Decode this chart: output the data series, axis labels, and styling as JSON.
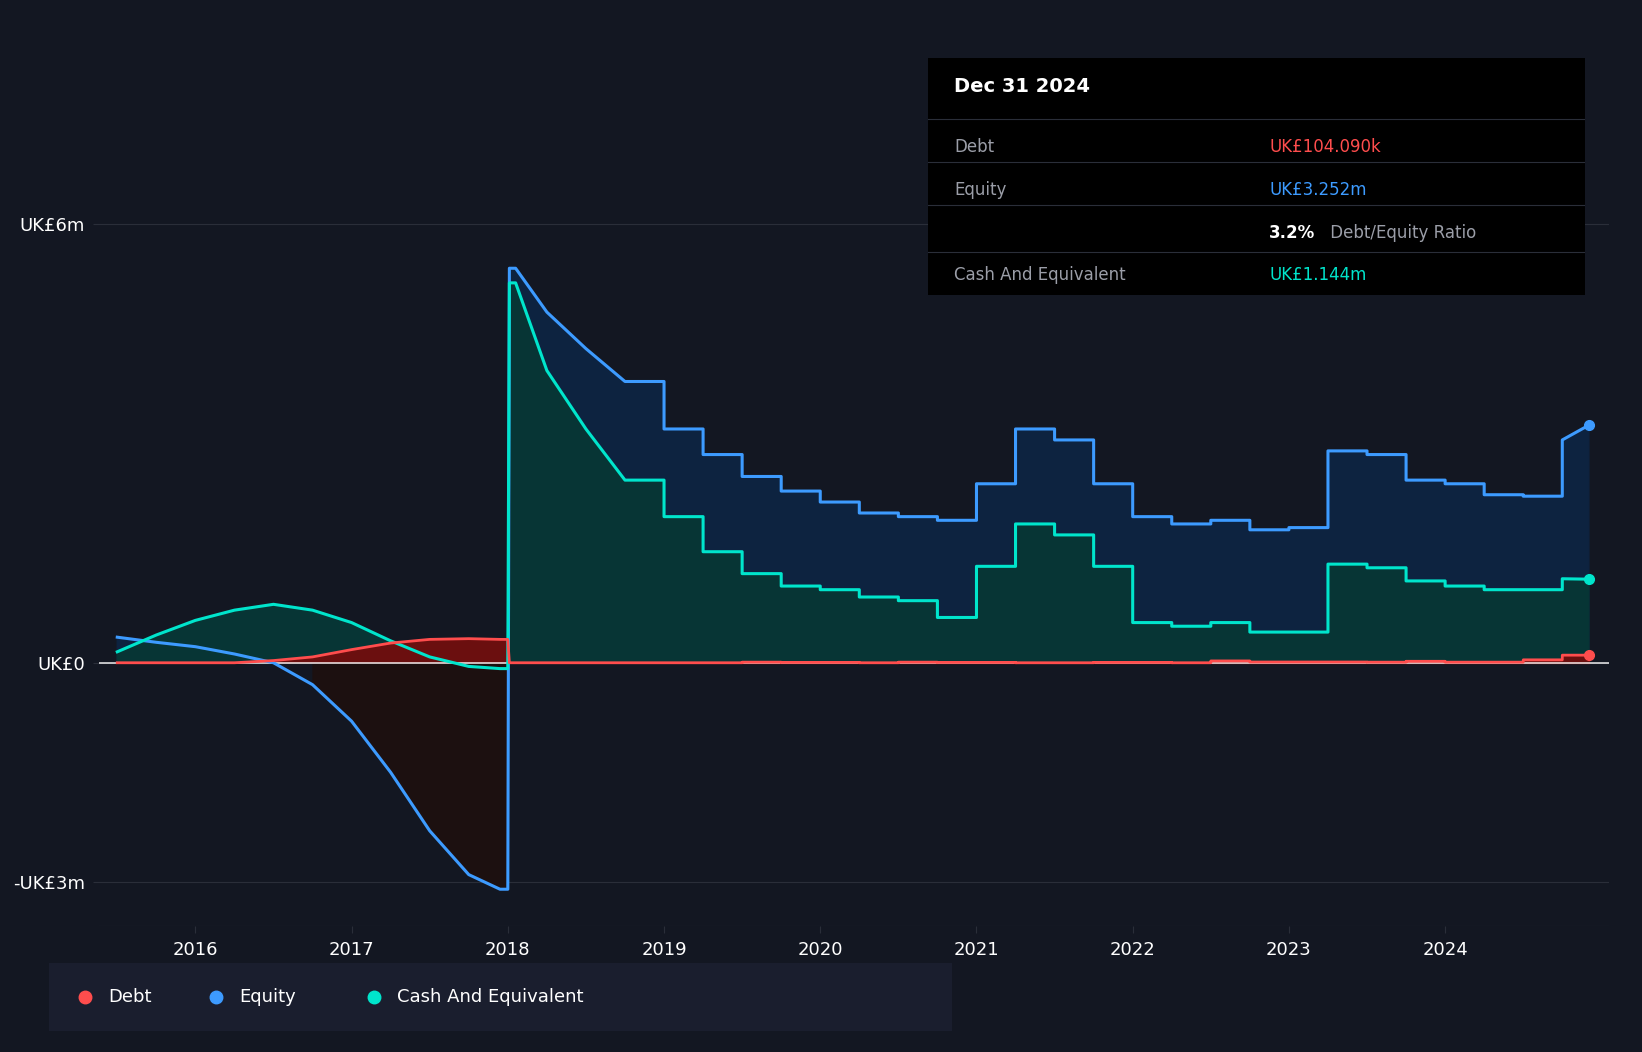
{
  "bg_color": "#131722",
  "plot_bg_color": "#131722",
  "debt_color": "#ff4d4d",
  "equity_color": "#3d9bff",
  "cash_color": "#00e5cc",
  "equity_fill_positive": "#0d2340",
  "equity_fill_negative": "#251010",
  "cash_fill_positive": "#073333",
  "cash_fill_negative": "#251010",
  "debt_fill_color": "#6b1010",
  "zero_line_color": "#ffffff",
  "grid_color": "#2a2e39",
  "text_color": "#ffffff",
  "label_color": "#9b9ea8",
  "tooltip_bg": "#000000",
  "tooltip": {
    "date": "Dec 31 2024",
    "debt_label": "Debt",
    "debt_value": "UK£104.090k",
    "equity_label": "Equity",
    "equity_value": "UK£3.252m",
    "ratio_text": "3.2% Debt/Equity Ratio",
    "cash_label": "Cash And Equivalent",
    "cash_value": "UK£1.144m"
  },
  "equity_data": {
    "x": [
      2015.5,
      2015.75,
      2016.0,
      2016.25,
      2016.5,
      2016.75,
      2017.0,
      2017.25,
      2017.5,
      2017.75,
      2017.95,
      2018.0,
      2018.01,
      2018.05,
      2018.25,
      2018.5,
      2018.75,
      2019.0,
      2019.0,
      2019.25,
      2019.25,
      2019.5,
      2019.5,
      2019.75,
      2019.75,
      2020.0,
      2020.0,
      2020.25,
      2020.25,
      2020.5,
      2020.5,
      2020.75,
      2020.75,
      2021.0,
      2021.0,
      2021.25,
      2021.25,
      2021.5,
      2021.5,
      2021.75,
      2021.75,
      2022.0,
      2022.0,
      2022.25,
      2022.25,
      2022.5,
      2022.5,
      2022.75,
      2022.75,
      2023.0,
      2023.0,
      2023.25,
      2023.25,
      2023.5,
      2023.5,
      2023.75,
      2023.75,
      2024.0,
      2024.0,
      2024.25,
      2024.25,
      2024.5,
      2024.5,
      2024.75,
      2024.75,
      2024.92
    ],
    "y": [
      0.35,
      0.28,
      0.22,
      0.12,
      0.0,
      -0.3,
      -0.8,
      -1.5,
      -2.3,
      -2.9,
      -3.1,
      -3.1,
      5.4,
      5.4,
      4.8,
      4.3,
      3.85,
      3.85,
      3.2,
      3.2,
      2.85,
      2.85,
      2.55,
      2.55,
      2.35,
      2.35,
      2.2,
      2.2,
      2.05,
      2.05,
      2.0,
      2.0,
      1.95,
      1.95,
      2.45,
      2.45,
      3.2,
      3.2,
      3.05,
      3.05,
      2.45,
      2.45,
      2.0,
      2.0,
      1.9,
      1.9,
      1.95,
      1.95,
      1.82,
      1.82,
      1.85,
      1.85,
      2.9,
      2.9,
      2.85,
      2.85,
      2.5,
      2.5,
      2.45,
      2.45,
      2.3,
      2.3,
      2.28,
      2.28,
      3.05,
      3.252
    ]
  },
  "cash_data": {
    "x": [
      2015.5,
      2015.75,
      2016.0,
      2016.25,
      2016.5,
      2016.75,
      2017.0,
      2017.25,
      2017.5,
      2017.75,
      2017.95,
      2018.0,
      2018.01,
      2018.05,
      2018.25,
      2018.5,
      2018.75,
      2019.0,
      2019.0,
      2019.25,
      2019.25,
      2019.5,
      2019.5,
      2019.75,
      2019.75,
      2020.0,
      2020.0,
      2020.25,
      2020.25,
      2020.5,
      2020.5,
      2020.75,
      2020.75,
      2021.0,
      2021.0,
      2021.25,
      2021.25,
      2021.5,
      2021.5,
      2021.75,
      2021.75,
      2022.0,
      2022.0,
      2022.25,
      2022.25,
      2022.5,
      2022.5,
      2022.75,
      2022.75,
      2023.0,
      2023.0,
      2023.25,
      2023.25,
      2023.5,
      2023.5,
      2023.75,
      2023.75,
      2024.0,
      2024.0,
      2024.25,
      2024.25,
      2024.5,
      2024.5,
      2024.75,
      2024.75,
      2024.92
    ],
    "y": [
      0.15,
      0.38,
      0.58,
      0.72,
      0.8,
      0.72,
      0.55,
      0.3,
      0.08,
      -0.05,
      -0.08,
      -0.08,
      5.2,
      5.2,
      4.0,
      3.2,
      2.5,
      2.5,
      2.0,
      2.0,
      1.52,
      1.52,
      1.22,
      1.22,
      1.05,
      1.05,
      1.0,
      1.0,
      0.9,
      0.9,
      0.85,
      0.85,
      0.62,
      0.62,
      1.32,
      1.32,
      1.9,
      1.9,
      1.75,
      1.75,
      1.32,
      1.32,
      0.55,
      0.55,
      0.5,
      0.5,
      0.55,
      0.55,
      0.42,
      0.42,
      0.42,
      0.42,
      1.35,
      1.35,
      1.3,
      1.3,
      1.12,
      1.12,
      1.05,
      1.05,
      1.0,
      1.0,
      1.0,
      1.0,
      1.15,
      1.144
    ]
  },
  "debt_data": {
    "x": [
      2015.5,
      2015.75,
      2016.0,
      2016.25,
      2016.5,
      2016.75,
      2017.0,
      2017.25,
      2017.5,
      2017.75,
      2017.95,
      2018.0,
      2018.01,
      2018.05,
      2018.25,
      2018.5,
      2018.75,
      2019.0,
      2019.0,
      2019.25,
      2019.25,
      2019.5,
      2019.5,
      2019.75,
      2019.75,
      2020.0,
      2020.0,
      2020.25,
      2020.25,
      2020.5,
      2020.5,
      2020.75,
      2020.75,
      2021.0,
      2021.0,
      2021.25,
      2021.25,
      2021.5,
      2021.5,
      2021.75,
      2021.75,
      2022.0,
      2022.0,
      2022.25,
      2022.25,
      2022.5,
      2022.5,
      2022.75,
      2022.75,
      2023.0,
      2023.0,
      2023.25,
      2023.25,
      2023.5,
      2023.5,
      2023.75,
      2023.75,
      2024.0,
      2024.0,
      2024.25,
      2024.25,
      2024.5,
      2024.5,
      2024.75,
      2024.75,
      2024.92
    ],
    "y": [
      0.0,
      0.0,
      0.0,
      0.0,
      0.03,
      0.08,
      0.18,
      0.27,
      0.32,
      0.33,
      0.32,
      0.32,
      0.0,
      0.0,
      0.0,
      0.0,
      0.0,
      0.0,
      0.0,
      0.0,
      0.0,
      0.0,
      0.008,
      0.008,
      0.005,
      0.005,
      0.005,
      0.005,
      0.0,
      0.0,
      0.008,
      0.008,
      0.005,
      0.005,
      0.005,
      0.005,
      0.0,
      0.0,
      0.0,
      0.0,
      0.005,
      0.005,
      0.005,
      0.005,
      0.0,
      0.0,
      0.025,
      0.025,
      0.01,
      0.01,
      0.01,
      0.01,
      0.01,
      0.01,
      0.008,
      0.008,
      0.02,
      0.02,
      0.008,
      0.008,
      0.008,
      0.008,
      0.04,
      0.04,
      0.104,
      0.104
    ]
  },
  "xlim": [
    2015.38,
    2025.05
  ],
  "ylim": [
    -3.6,
    7.2
  ],
  "yticks_val": [
    -3.0,
    0.0,
    6.0
  ],
  "ytick_labels": [
    "-UK£3m",
    "UK£0",
    "UK£6m"
  ],
  "xtick_years": [
    2016,
    2017,
    2018,
    2019,
    2020,
    2021,
    2022,
    2023,
    2024
  ],
  "legend_items": [
    {
      "label": "Debt",
      "color": "#ff4d4d"
    },
    {
      "label": "Equity",
      "color": "#3d9bff"
    },
    {
      "label": "Cash And Equivalent",
      "color": "#00e5cc"
    }
  ]
}
